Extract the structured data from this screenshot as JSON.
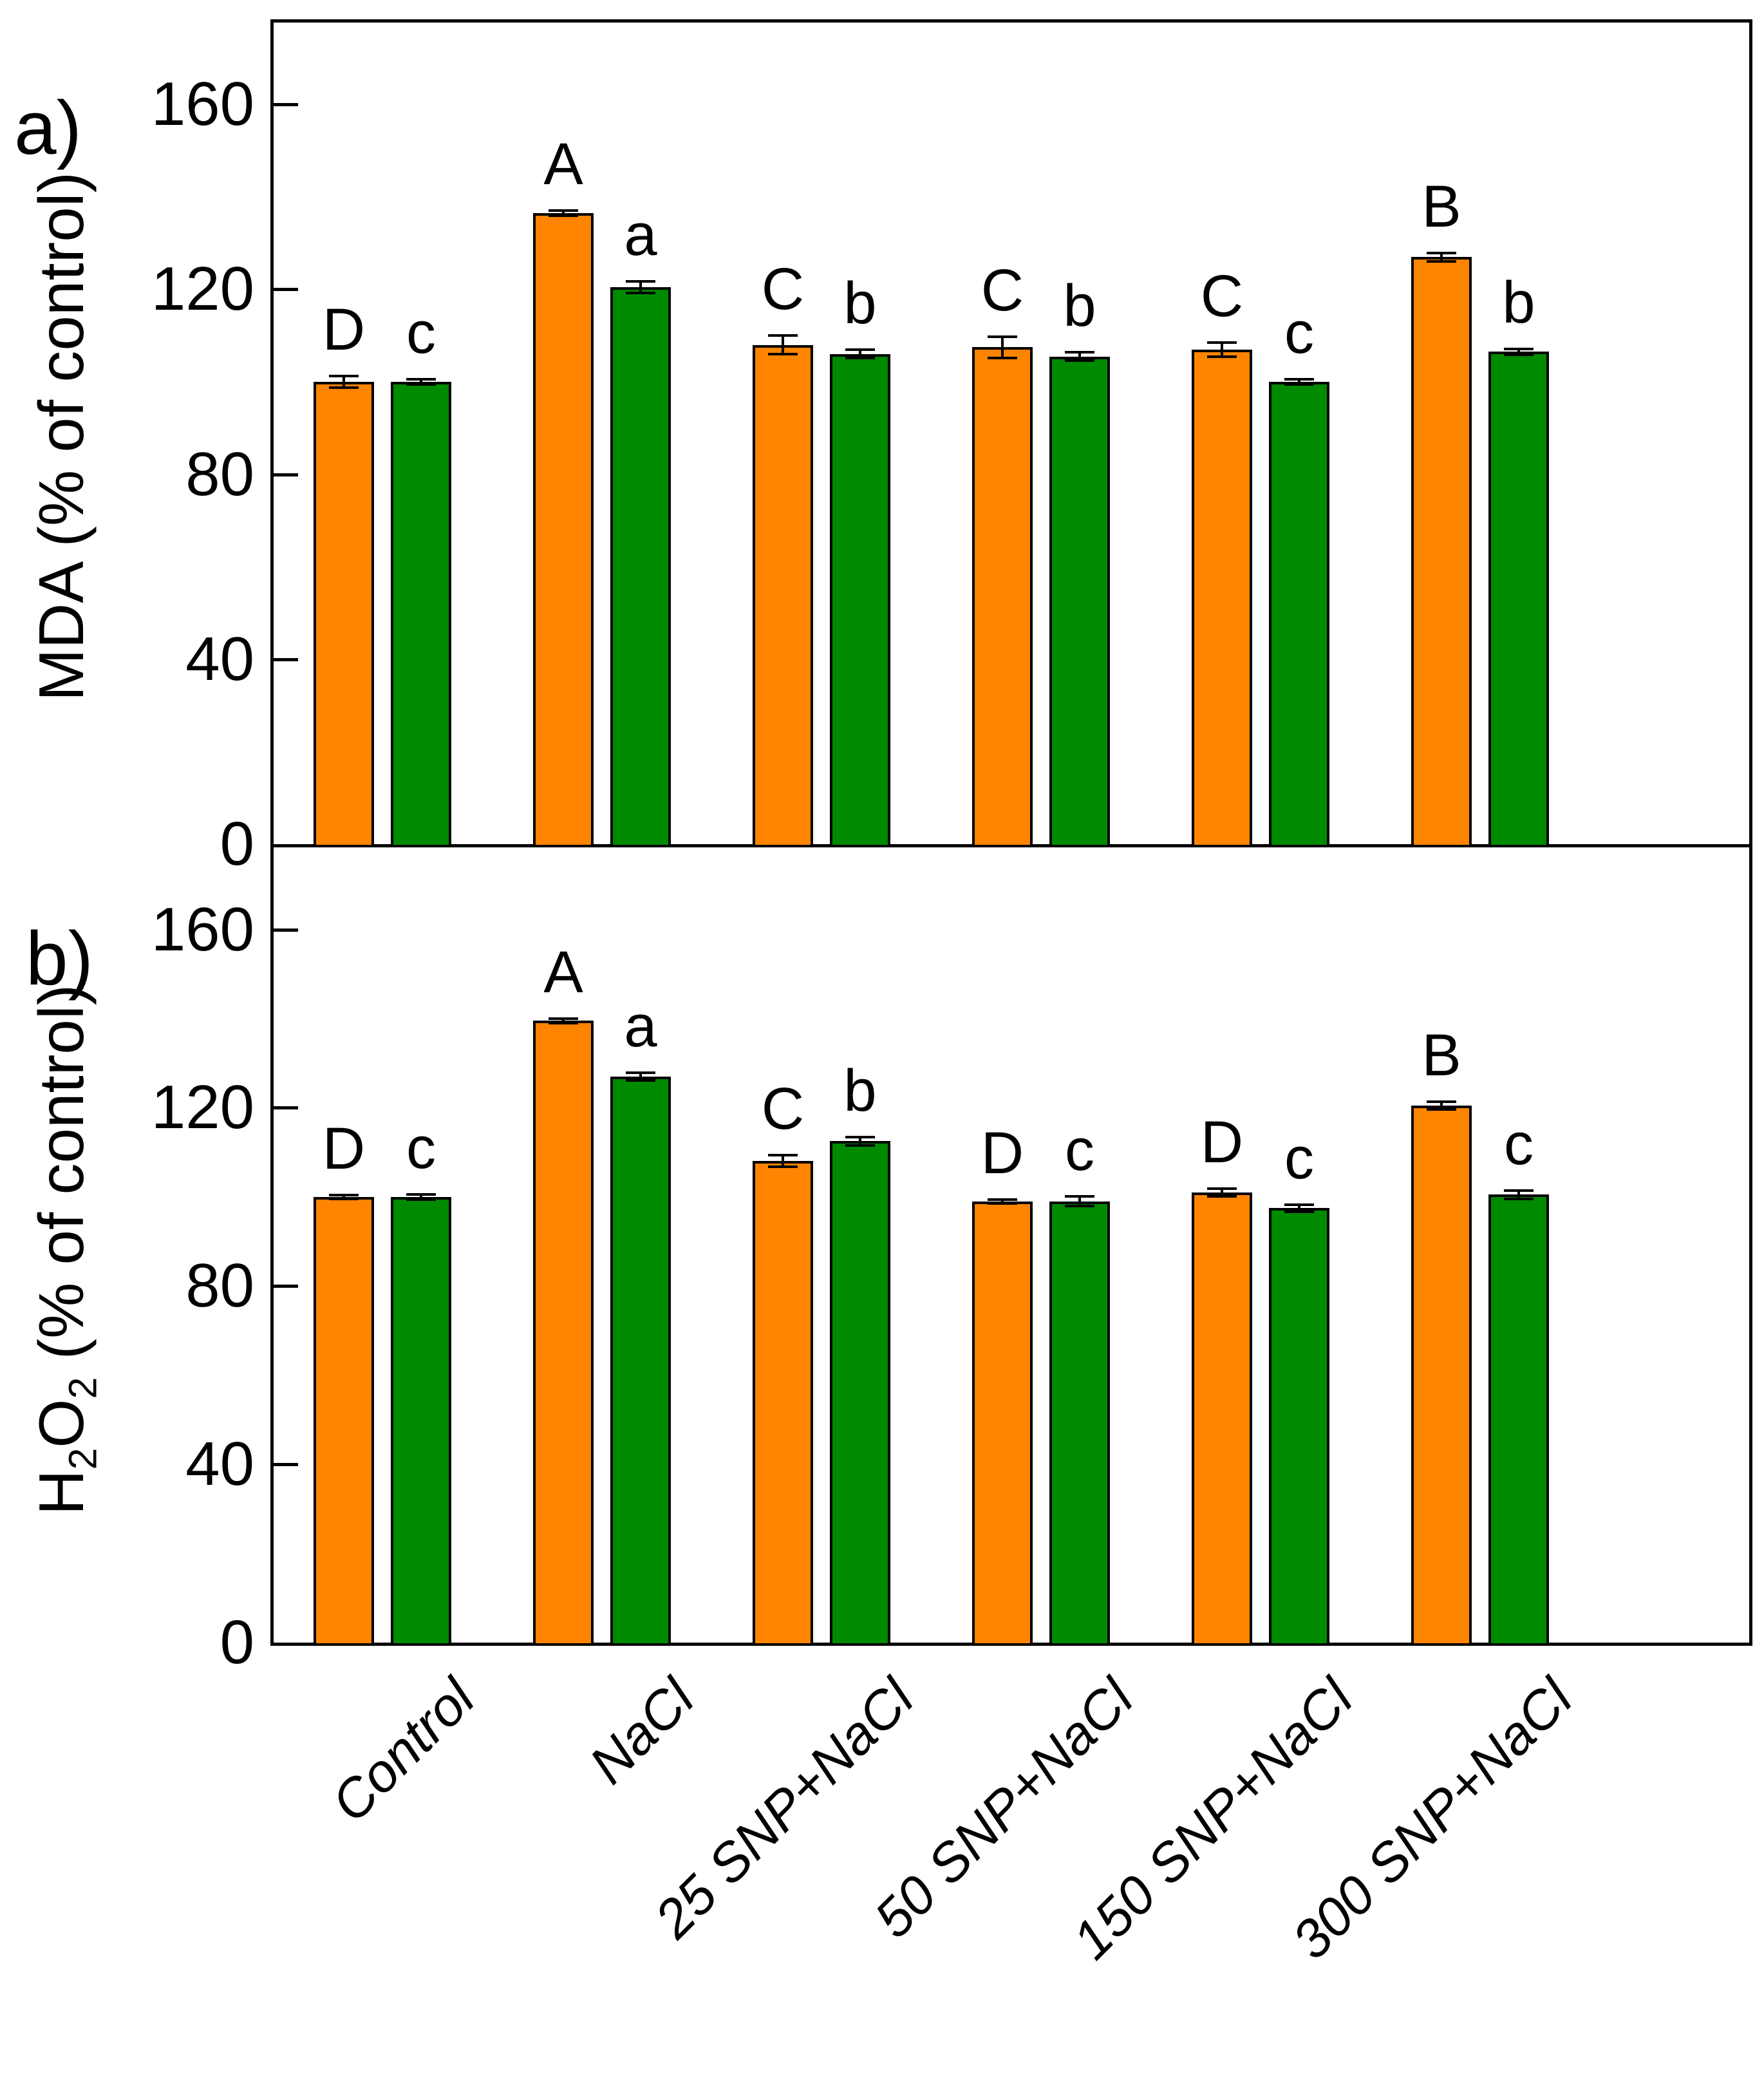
{
  "figure": {
    "panel_a_label": "a)",
    "panel_b_label": "b)"
  },
  "palette": {
    "orange": "#FF8400",
    "green": "#008A00",
    "axis": "#000000",
    "background": "#FFFFFF"
  },
  "chart_data": [
    {
      "type": "bar",
      "panel": "a",
      "title": "",
      "xlabel": "",
      "ylabel": "MDA (% of control)",
      "ylabel_parts": [
        {
          "text": "MDA (% of control)",
          "sub": false
        }
      ],
      "ylim": [
        0,
        178
      ],
      "yticks": [
        0,
        40,
        80,
        120,
        160
      ],
      "grid": false,
      "legend": "none",
      "show_x_labels": false,
      "categories": [
        "Control",
        "NaCl",
        "25 SNP+NaCl",
        "50 SNP+NaCl",
        "150 SNP+NaCl",
        "300 SNP+NaCl"
      ],
      "series": [
        {
          "name": "orange",
          "color_key": "orange",
          "values": [
            100,
            136.5,
            108,
            107.5,
            107,
            127
          ],
          "errors": [
            1.3,
            0.6,
            2.0,
            2.3,
            1.5,
            0.9
          ],
          "letters": [
            "D",
            "A",
            "C",
            "C",
            "C",
            "B"
          ]
        },
        {
          "name": "green",
          "color_key": "green",
          "values": [
            100,
            120.5,
            106,
            105.5,
            100,
            106.5
          ],
          "errors": [
            0.6,
            1.3,
            0.9,
            0.9,
            0.6,
            0.6
          ],
          "letters": [
            "c",
            "a",
            "b",
            "b",
            "c",
            "b"
          ]
        }
      ]
    },
    {
      "type": "bar",
      "panel": "b",
      "title": "",
      "xlabel": "",
      "ylabel": "H2O2 (% of control)",
      "ylabel_parts": [
        {
          "text": "H",
          "sub": false
        },
        {
          "text": "2",
          "sub": true
        },
        {
          "text": "O",
          "sub": false
        },
        {
          "text": "2",
          "sub": true
        },
        {
          "text": " (% of control)",
          "sub": false
        }
      ],
      "ylim": [
        0,
        178
      ],
      "yticks": [
        0,
        40,
        80,
        120,
        160
      ],
      "grid": false,
      "legend": "none",
      "show_x_labels": true,
      "categories": [
        "Control",
        "NaCl",
        "25 SNP+NaCl",
        "50 SNP+NaCl",
        "150 SNP+NaCl",
        "300 SNP+NaCl"
      ],
      "series": [
        {
          "name": "orange",
          "color_key": "orange",
          "values": [
            100,
            139.5,
            108,
            99,
            101,
            120.5
          ],
          "errors": [
            0.4,
            0.5,
            1.3,
            0.4,
            0.9,
            0.9
          ],
          "letters": [
            "D",
            "A",
            "C",
            "D",
            "D",
            "B"
          ]
        },
        {
          "name": "green",
          "color_key": "green",
          "values": [
            100,
            127,
            112.5,
            99,
            97.5,
            100.5
          ],
          "errors": [
            0.6,
            0.9,
            0.9,
            1.1,
            0.8,
            0.9
          ],
          "letters": [
            "c",
            "a",
            "b",
            "c",
            "c",
            "c"
          ]
        }
      ]
    }
  ]
}
